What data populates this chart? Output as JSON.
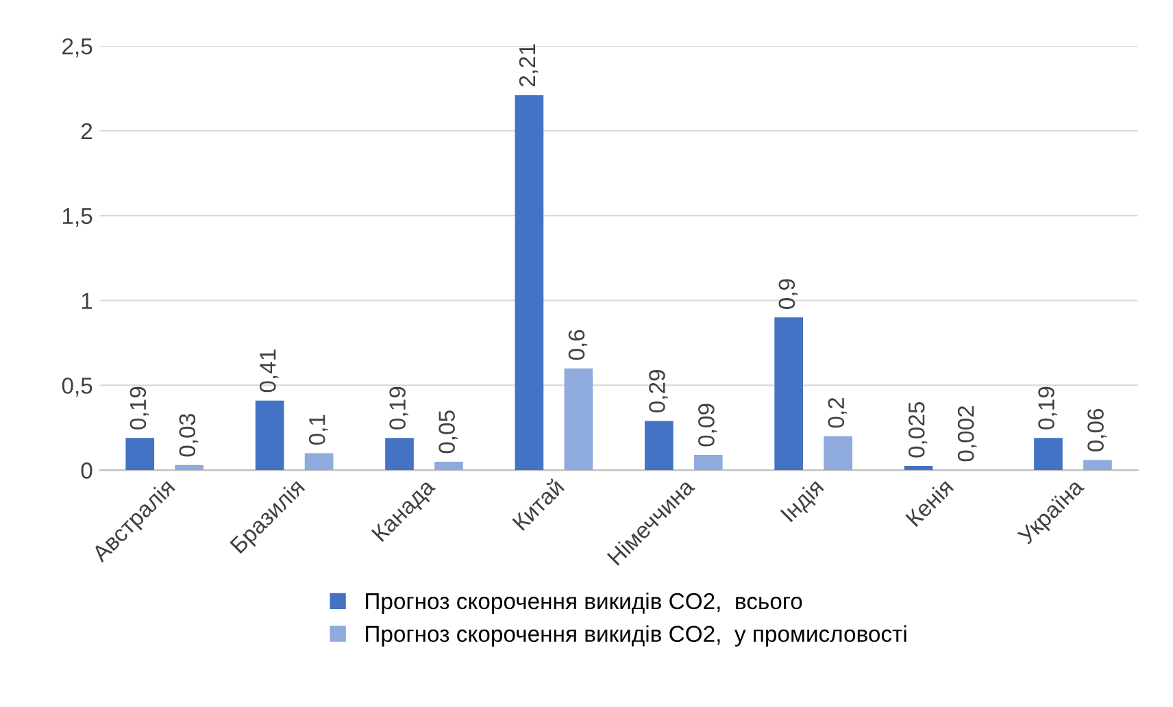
{
  "chart_data": {
    "type": "bar",
    "categories": [
      "Австралія",
      "Бразилія",
      "Канада",
      "Китай",
      "Німеччина",
      "Індія",
      "Кенія",
      "Україна"
    ],
    "series": [
      {
        "name": "Прогноз скорочення викидів CO2,  всього",
        "color": "#4472c4",
        "values": [
          0.19,
          0.41,
          0.19,
          2.21,
          0.29,
          0.9,
          0.025,
          0.19
        ],
        "value_labels": [
          "0,19",
          "0,41",
          "0,19",
          "2,21",
          "0,29",
          "0,9",
          "0,025",
          "0,19"
        ]
      },
      {
        "name": "Прогноз скорочення викидів CO2,  у промисловості",
        "color": "#8faadc",
        "values": [
          0.03,
          0.1,
          0.05,
          0.6,
          0.09,
          0.2,
          0.002,
          0.06
        ],
        "value_labels": [
          "0,03",
          "0,1",
          "0,05",
          "0,6",
          "0,09",
          "0,2",
          "0,002",
          "0,06"
        ]
      }
    ],
    "ylim": [
      0,
      2.5
    ],
    "yticks": [
      0,
      {
        "value": 0.5,
        "label": "0,5"
      },
      1,
      {
        "value": 1.5,
        "label": "1,5"
      },
      2,
      {
        "value": 2.5,
        "label": "2,5"
      }
    ],
    "grid": "y",
    "legend": "bottom"
  }
}
